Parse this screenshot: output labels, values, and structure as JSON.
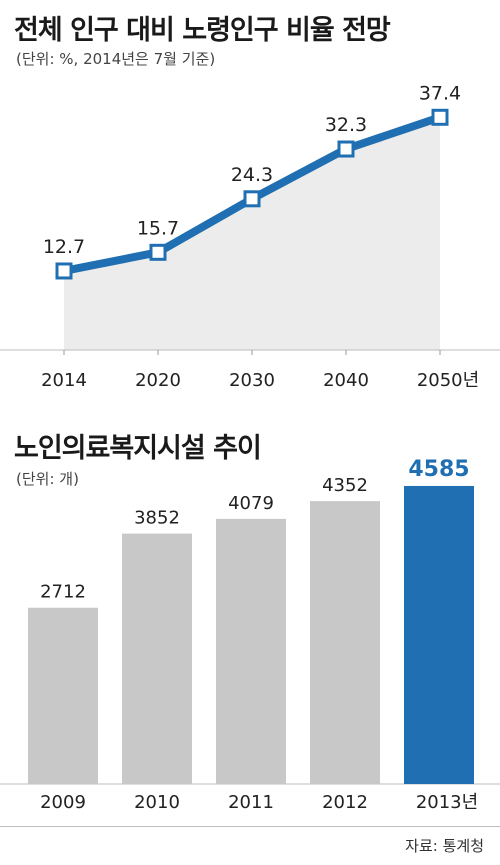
{
  "chart_data": [
    {
      "type": "line",
      "title": "전체 인구 대비 노령인구 비율 전망",
      "subtitle": "(단위: %, 2014년은 7월 기준)",
      "categories": [
        "2014",
        "2020",
        "2030",
        "2040",
        "2050년"
      ],
      "values": [
        12.7,
        15.7,
        24.3,
        32.3,
        37.4
      ],
      "value_labels": [
        "12.7",
        "15.7",
        "24.3",
        "32.3",
        "37.4"
      ],
      "ylim": [
        0,
        45
      ],
      "colors": {
        "line": "#1f6fb2",
        "area": "#ececec"
      },
      "grid": false
    },
    {
      "type": "bar",
      "title": "노인의료복지시설 추이",
      "subtitle": "(단위: 개)",
      "categories": [
        "2009",
        "2010",
        "2011",
        "2012",
        "2013년"
      ],
      "values": [
        2712,
        3852,
        4079,
        4352,
        4585
      ],
      "value_labels": [
        "2712",
        "3852",
        "4079",
        "4352",
        "4585"
      ],
      "ylim": [
        0,
        6000
      ],
      "colors": {
        "bar": "#c8c8c8",
        "highlight": "#1f6fb2"
      },
      "highlight_index": 4,
      "grid": false
    }
  ],
  "source": "자료: 통계청"
}
